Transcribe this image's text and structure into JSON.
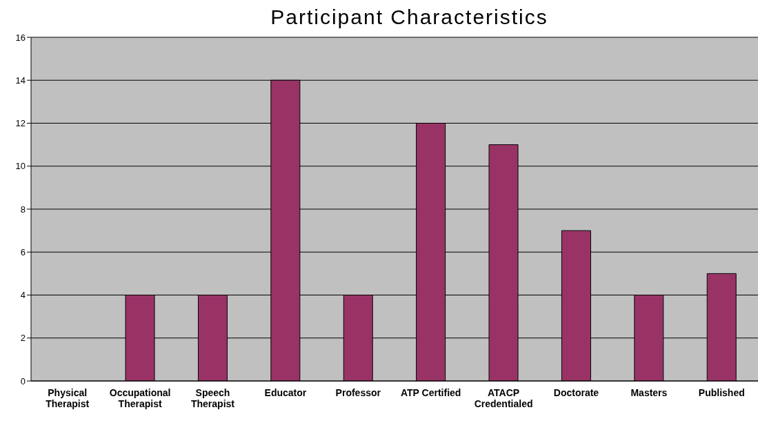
{
  "chart_data": {
    "type": "bar",
    "title": "Participant Characteristics",
    "categories": [
      "Physical Therapist",
      "Occupational Therapist",
      "Speech Therapist",
      "Educator",
      "Professor",
      "ATP Certified",
      "ATACP Credentialed",
      "Doctorate",
      "Masters",
      "Published"
    ],
    "values": [
      0,
      4,
      4,
      14,
      4,
      12,
      11,
      7,
      4,
      5
    ],
    "color": "#993366",
    "ylim": [
      0,
      16
    ],
    "yticks": [
      0,
      2,
      4,
      6,
      8,
      10,
      12,
      14,
      16
    ],
    "grid": "y"
  }
}
